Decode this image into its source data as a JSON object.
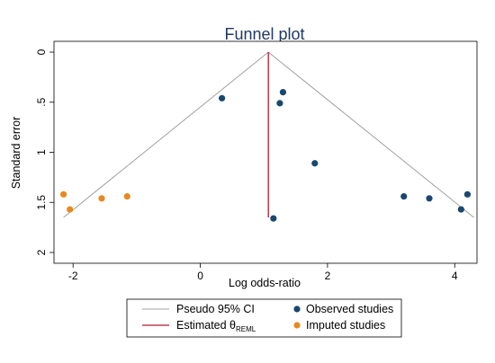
{
  "chart_data": {
    "type": "scatter",
    "title": "Funnel plot",
    "xlabel": "Log odds-ratio",
    "ylabel": "Standard error",
    "xlim": [
      -2.3,
      4.35
    ],
    "ylim": [
      0,
      2.05
    ],
    "y_reversed": true,
    "xticks": [
      -2,
      0,
      2,
      4
    ],
    "xtick_labels": [
      "-2",
      "0",
      "2",
      "4"
    ],
    "yticks": [
      0,
      0.5,
      1,
      1.5,
      2
    ],
    "ytick_labels": [
      "0",
      ".5",
      "1",
      "1.5",
      "2"
    ],
    "grid": false,
    "colors": {
      "observed": "#1a476f",
      "imputed": "#e8891f",
      "ci": "#a0a0a0",
      "estimate": "#b5182c",
      "title": "#1f3864"
    },
    "series": [
      {
        "name": "Observed studies",
        "points": [
          {
            "x": 0.34,
            "y": 0.46
          },
          {
            "x": 1.3,
            "y": 0.4
          },
          {
            "x": 1.25,
            "y": 0.51
          },
          {
            "x": 1.8,
            "y": 1.11
          },
          {
            "x": 3.2,
            "y": 1.44
          },
          {
            "x": 3.6,
            "y": 1.46
          },
          {
            "x": 4.1,
            "y": 1.57
          },
          {
            "x": 4.2,
            "y": 1.42
          },
          {
            "x": 1.15,
            "y": 1.66
          }
        ]
      },
      {
        "name": "Imputed studies",
        "points": [
          {
            "x": -2.15,
            "y": 1.42
          },
          {
            "x": -2.05,
            "y": 1.57
          },
          {
            "x": -1.55,
            "y": 1.46
          },
          {
            "x": -1.15,
            "y": 1.44
          }
        ]
      }
    ],
    "estimate": {
      "x": 1.07,
      "y_from": 0,
      "y_to": 1.65
    },
    "ci_lines": {
      "apex": {
        "x": 1.07,
        "y": 0
      },
      "left_end": {
        "x": -2.15,
        "y": 1.65
      },
      "right_end": {
        "x": 4.3,
        "y": 1.65
      }
    },
    "legend": {
      "placement": "bottom",
      "items": [
        {
          "label": "Pseudo 95% CI",
          "symbol": "ci-line"
        },
        {
          "label": "Observed studies",
          "symbol": "observed-dot"
        },
        {
          "label": "Estimated θ",
          "subscript": "REML",
          "symbol": "estimate-line"
        },
        {
          "label": "Imputed studies",
          "symbol": "imputed-dot"
        }
      ]
    }
  }
}
